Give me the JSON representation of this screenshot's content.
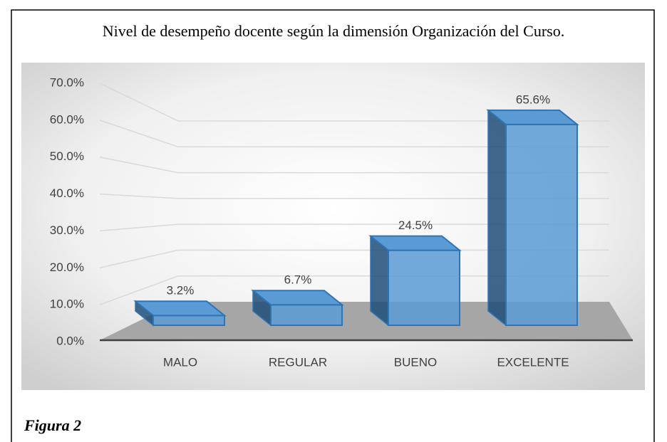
{
  "chart_data": {
    "type": "bar3d",
    "title": "Nivel de desempeño docente según la dimensión Organización del Curso.",
    "categories": [
      "MALO",
      "REGULAR",
      "BUENO",
      "EXCELENTE"
    ],
    "values": [
      3.2,
      6.7,
      24.5,
      65.6
    ],
    "value_labels": [
      "3.2%",
      "6.7%",
      "24.5%",
      "65.6%"
    ],
    "color": "#5b9bd5",
    "ylim": [
      0,
      70
    ],
    "yticks": [
      {
        "value": 0,
        "label": "0.0%"
      },
      {
        "value": 10,
        "label": "10.0%"
      },
      {
        "value": 20,
        "label": "20.0%"
      },
      {
        "value": 30,
        "label": "30.0%"
      },
      {
        "value": 40,
        "label": "40.0%"
      },
      {
        "value": 50,
        "label": "50.0%"
      },
      {
        "value": 60,
        "label": "60.0%"
      },
      {
        "value": 70,
        "label": "70.0%"
      }
    ],
    "grid": true
  },
  "caption": "Figura 2"
}
